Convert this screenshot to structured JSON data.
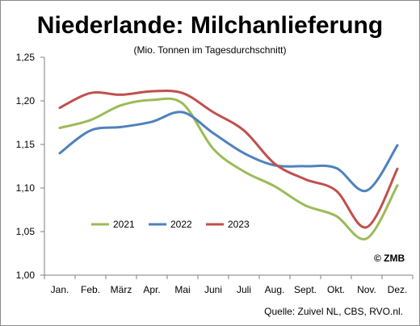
{
  "chart_data": {
    "type": "line",
    "title": "Niederlande: Milchanlieferung",
    "subtitle": "(Mio. Tonnen im Tagesdurchschnitt)",
    "categories": [
      "Jan.",
      "Feb.",
      "März",
      "Apr.",
      "Mai",
      "Juni",
      "Juli",
      "Aug.",
      "Sept.",
      "Okt.",
      "Nov.",
      "Dez."
    ],
    "ylim": [
      1.0,
      1.25
    ],
    "yticks": [
      "1,00",
      "1,05",
      "1,10",
      "1,15",
      "1,20",
      "1,25"
    ],
    "ytick_values": [
      1.0,
      1.05,
      1.1,
      1.15,
      1.2,
      1.25
    ],
    "grid": false,
    "legend_position": "bottom-left",
    "series": [
      {
        "name": "2021",
        "color": "#9bbb59",
        "values": [
          1.169,
          1.178,
          1.195,
          1.201,
          1.197,
          1.145,
          1.119,
          1.102,
          1.08,
          1.068,
          1.042,
          1.103
        ]
      },
      {
        "name": "2022",
        "color": "#4f81bd",
        "values": [
          1.14,
          1.166,
          1.17,
          1.176,
          1.187,
          1.163,
          1.14,
          1.126,
          1.125,
          1.123,
          1.097,
          1.149
        ]
      },
      {
        "name": "2023",
        "color": "#c0504d",
        "values": [
          1.192,
          1.209,
          1.207,
          1.211,
          1.209,
          1.187,
          1.166,
          1.128,
          1.11,
          1.097,
          1.055,
          1.122
        ]
      }
    ],
    "annotation": "© ZMB"
  },
  "source": "Quelle:  Zuivel NL, CBS, RVO.nl."
}
